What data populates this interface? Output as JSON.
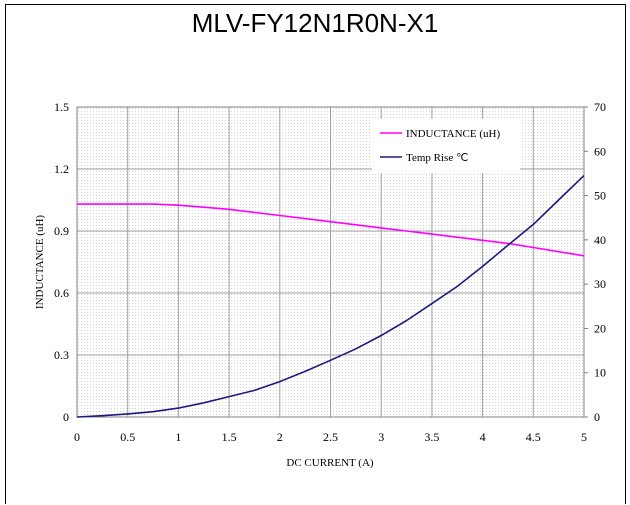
{
  "chart_data": {
    "type": "line",
    "title": "MLV-FY12N1R0N-X1",
    "xlabel": "DC CURRENT  (A)",
    "ylabel": "INDUCTANCE (uH)",
    "xlim": [
      0,
      5
    ],
    "ylim": [
      0,
      1.5
    ],
    "y2lim": [
      0,
      70
    ],
    "x_ticks": [
      "0",
      "0.5",
      "1",
      "1.5",
      "2",
      "2.5",
      "3",
      "3.5",
      "4",
      "4.5",
      "5"
    ],
    "y_ticks": [
      "0",
      "0.3",
      "0.6",
      "0.9",
      "1.2",
      "1.5"
    ],
    "y2_ticks": [
      "0",
      "10",
      "20",
      "30",
      "40",
      "50",
      "60",
      "70"
    ],
    "grid": true,
    "legend_position": "top-right",
    "series": [
      {
        "name": "INDUCTANCE (uH)",
        "axis": "left",
        "color": "#ff00ff",
        "x": [
          0,
          0.25,
          0.5,
          0.75,
          1,
          1.25,
          1.5,
          1.75,
          2,
          2.25,
          2.5,
          2.75,
          3,
          3.25,
          3.5,
          3.75,
          4,
          4.25,
          4.5,
          4.75,
          5
        ],
        "y": [
          1.03,
          1.03,
          1.03,
          1.03,
          1.025,
          1.015,
          1.005,
          0.99,
          0.975,
          0.96,
          0.945,
          0.93,
          0.915,
          0.9,
          0.885,
          0.87,
          0.855,
          0.84,
          0.82,
          0.8,
          0.78
        ]
      },
      {
        "name": "Temp Rise ℃",
        "axis": "right",
        "color": "#1a1a80",
        "x": [
          0,
          0.25,
          0.5,
          0.75,
          1,
          1.25,
          1.5,
          1.75,
          2,
          2.25,
          2.5,
          2.75,
          3,
          3.25,
          3.5,
          3.75,
          4,
          4.25,
          4.5,
          4.75,
          5
        ],
        "y": [
          0,
          0.3,
          0.7,
          1.2,
          2,
          3.2,
          4.6,
          6,
          8,
          10.3,
          12.8,
          15.4,
          18.4,
          21.8,
          25.6,
          29.5,
          34,
          38.8,
          43.5,
          49,
          54.5
        ]
      }
    ]
  }
}
